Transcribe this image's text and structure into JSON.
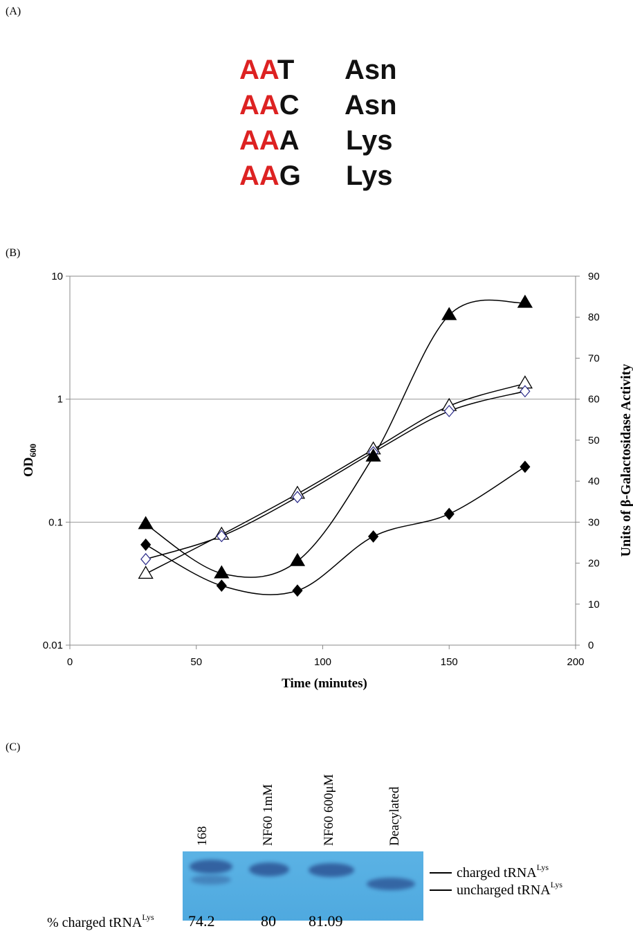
{
  "panel_a": {
    "label": "(A)",
    "rows": [
      {
        "prefix": "AA",
        "suffix": "T",
        "amino_acid": "Asn"
      },
      {
        "prefix": "AA",
        "suffix": "C",
        "amino_acid": "Asn"
      },
      {
        "prefix": "AA",
        "suffix": "A",
        "amino_acid": "Lys"
      },
      {
        "prefix": "AA",
        "suffix": "G",
        "amino_acid": "Lys"
      }
    ],
    "prefix_color": "#dd2222"
  },
  "panel_b": {
    "label": "(B)"
  },
  "chart_data": {
    "type": "line",
    "xlabel": "Time (minutes)",
    "ylabel_left": "OD",
    "ylabel_left_sub": "600",
    "ylabel_right": "Units of β-Galactosidase Activity",
    "xlim": [
      0,
      200
    ],
    "x_ticks": [
      "0",
      "50",
      "100",
      "150",
      "200"
    ],
    "y_left_scale": "log",
    "ylim_left": [
      0.01,
      10
    ],
    "y_left_ticks": [
      "0.01",
      "0.1",
      "1",
      "10"
    ],
    "ylim_right": [
      0,
      90
    ],
    "y_right_ticks": [
      "0",
      "10",
      "20",
      "30",
      "40",
      "50",
      "60",
      "70",
      "80",
      "90"
    ],
    "grid": "horizontal at 0.1, 1, 10",
    "series": [
      {
        "marker": "open-triangle",
        "axis": "left",
        "x": [
          30,
          60,
          90,
          120,
          150,
          180
        ],
        "y": [
          0.038,
          0.079,
          0.17,
          0.39,
          0.88,
          1.34
        ]
      },
      {
        "marker": "open-diamond",
        "axis": "left",
        "x": [
          30,
          60,
          90,
          120,
          150,
          180
        ],
        "y": [
          0.05,
          0.077,
          0.16,
          0.37,
          0.8,
          1.16
        ]
      },
      {
        "marker": "filled-triangle",
        "axis": "right",
        "x": [
          30,
          60,
          90,
          120,
          150,
          180
        ],
        "y": [
          29.5,
          17.5,
          20.5,
          46,
          80.5,
          83.5
        ]
      },
      {
        "marker": "filled-diamond",
        "axis": "right",
        "x": [
          30,
          60,
          90,
          120,
          150,
          180
        ],
        "y": [
          24.5,
          14.5,
          13.3,
          26.5,
          32,
          43.5
        ]
      }
    ]
  },
  "panel_c": {
    "label": "(C)",
    "lanes": [
      "168",
      "NF60 1mM",
      "NF60 600μM",
      "Deacylated"
    ],
    "band_labels": {
      "charged": "charged tRNA",
      "uncharged": "uncharged tRNA",
      "superscript": "Lys"
    },
    "percent_label": "% charged tRNA",
    "percent_label_sup": "Lys",
    "percent_values": [
      "74.2",
      "80",
      "81.09"
    ],
    "gel_color": "#55aee2",
    "band_color": "#2f5a9a"
  }
}
